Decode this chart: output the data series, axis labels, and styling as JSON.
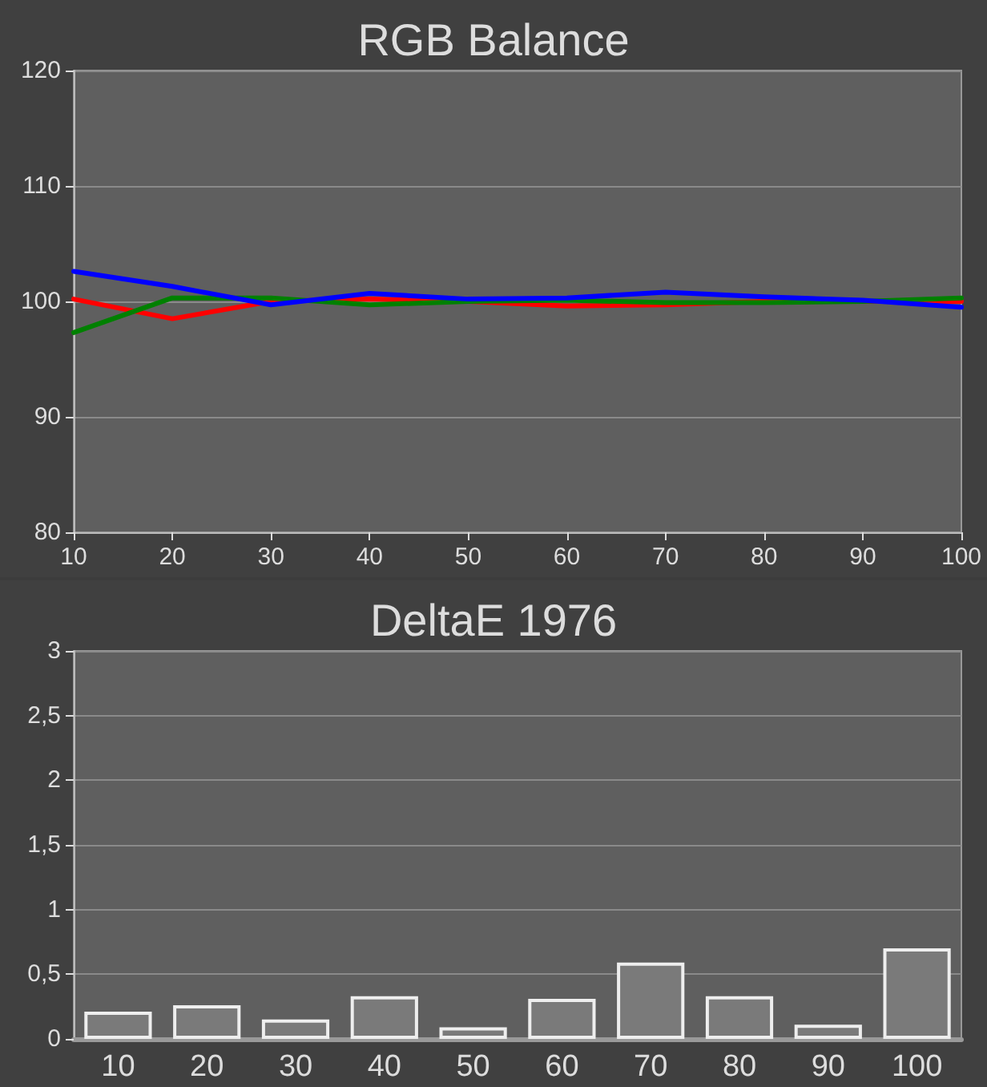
{
  "chart_data": [
    {
      "type": "line",
      "title": "RGB Balance",
      "x": [
        10,
        20,
        30,
        40,
        50,
        60,
        70,
        80,
        90,
        100
      ],
      "series": [
        {
          "color": "#ff0000",
          "values": [
            100.2,
            98.5,
            100,
            100.2,
            100,
            99.6,
            99.7,
            100,
            100,
            100
          ]
        },
        {
          "color": "#008000",
          "values": [
            97.3,
            100.3,
            100.3,
            99.7,
            100,
            100.1,
            99.9,
            99.9,
            100,
            100.3
          ]
        },
        {
          "color": "#0000ff",
          "values": [
            102.6,
            101.3,
            99.7,
            100.7,
            100.2,
            100.3,
            100.8,
            100.4,
            100.1,
            99.5
          ]
        }
      ],
      "xlim": [
        10,
        100
      ],
      "xticks": [
        10,
        20,
        30,
        40,
        50,
        60,
        70,
        80,
        90,
        100
      ],
      "ylim": [
        80,
        120
      ],
      "yticks": [
        80,
        90,
        100,
        110,
        120
      ],
      "grid": "y",
      "marker": "none",
      "line_style": "solid"
    },
    {
      "type": "bar",
      "title": "DeltaE 1976",
      "categories": [
        "10",
        "20",
        "30",
        "40",
        "50",
        "60",
        "70",
        "80",
        "90",
        "100"
      ],
      "values": [
        0.21,
        0.26,
        0.15,
        0.33,
        0.09,
        0.31,
        0.59,
        0.33,
        0.11,
        0.7
      ],
      "color": "#7a7a7a",
      "ylim": [
        0,
        3
      ],
      "yticks": [
        0,
        {
          "value": 0.5,
          "label": "0,5"
        },
        1,
        {
          "value": 1.5,
          "label": "1,5"
        },
        2,
        {
          "value": 2.5,
          "label": "2,5"
        },
        3
      ],
      "grid": "y"
    }
  ]
}
